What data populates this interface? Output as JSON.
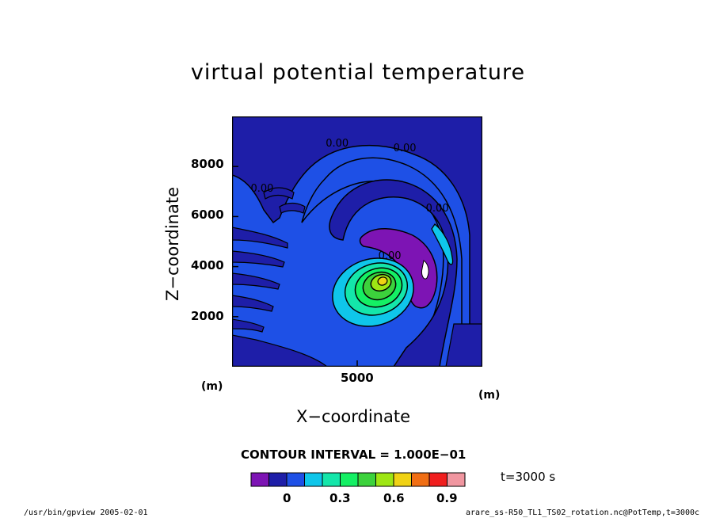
{
  "title": "virtual potential temperature",
  "xlabel": "X−coordinate",
  "ylabel": "Z−coordinate",
  "x_unit": "(m)",
  "y_unit": "(m)",
  "contour_interval_text": "CONTOUR INTERVAL = 1.000E−01",
  "time_text": "t=3000 s",
  "footer_left": "/usr/bin/gpview  2005-02-01",
  "footer_right": "arare_ss-R50_TL1_TS02_rotation.nc@PotTemp,t=3000c",
  "chart_data": {
    "type": "heatmap",
    "title": "virtual potential temperature",
    "xlabel": "X−coordinate",
    "ylabel": "Z−coordinate",
    "xlim": [
      0,
      10000
    ],
    "ylim": [
      0,
      10000
    ],
    "x_ticks": [
      {
        "value": 5000,
        "label": "5000"
      }
    ],
    "y_ticks": [
      {
        "value": 2000,
        "label": "2000"
      },
      {
        "value": 4000,
        "label": "4000"
      },
      {
        "value": 6000,
        "label": "6000"
      },
      {
        "value": 8000,
        "label": "8000"
      }
    ],
    "contour_interval": 0.1,
    "contour_labels": [
      {
        "text": "0.00",
        "x": 4200,
        "y": 8800
      },
      {
        "text": "0.00",
        "x": 6900,
        "y": 8600
      },
      {
        "text": "0.00",
        "x": 1200,
        "y": 7000
      },
      {
        "text": "0.00",
        "x": 8200,
        "y": 6200
      },
      {
        "text": "0.00",
        "x": 6300,
        "y": 4300
      }
    ],
    "features": [
      {
        "kind": "warm_max",
        "x": 5900,
        "y": 3400,
        "peak_level": 0.7
      },
      {
        "kind": "cold_min",
        "x": 7600,
        "y": 4000,
        "min_level": -0.1
      },
      {
        "kind": "warm_band",
        "x": 8600,
        "y": 5200,
        "level": 0.1
      }
    ],
    "colorbar": {
      "colors": [
        "#7d14b4",
        "#1e1ea8",
        "#1e50e6",
        "#0fc6ea",
        "#14e6aa",
        "#14f064",
        "#3cd23c",
        "#9ee614",
        "#f0d214",
        "#f06e14",
        "#f01e1e",
        "#f096a0"
      ],
      "labels": [
        "0",
        "0.3",
        "0.6",
        "0.9"
      ],
      "label_values": [
        0,
        0.3,
        0.6,
        0.9
      ],
      "levels": [
        -0.2,
        -0.1,
        0.0,
        0.1,
        0.2,
        0.3,
        0.4,
        0.5,
        0.6,
        0.7,
        0.8,
        0.9,
        1.0
      ]
    }
  }
}
